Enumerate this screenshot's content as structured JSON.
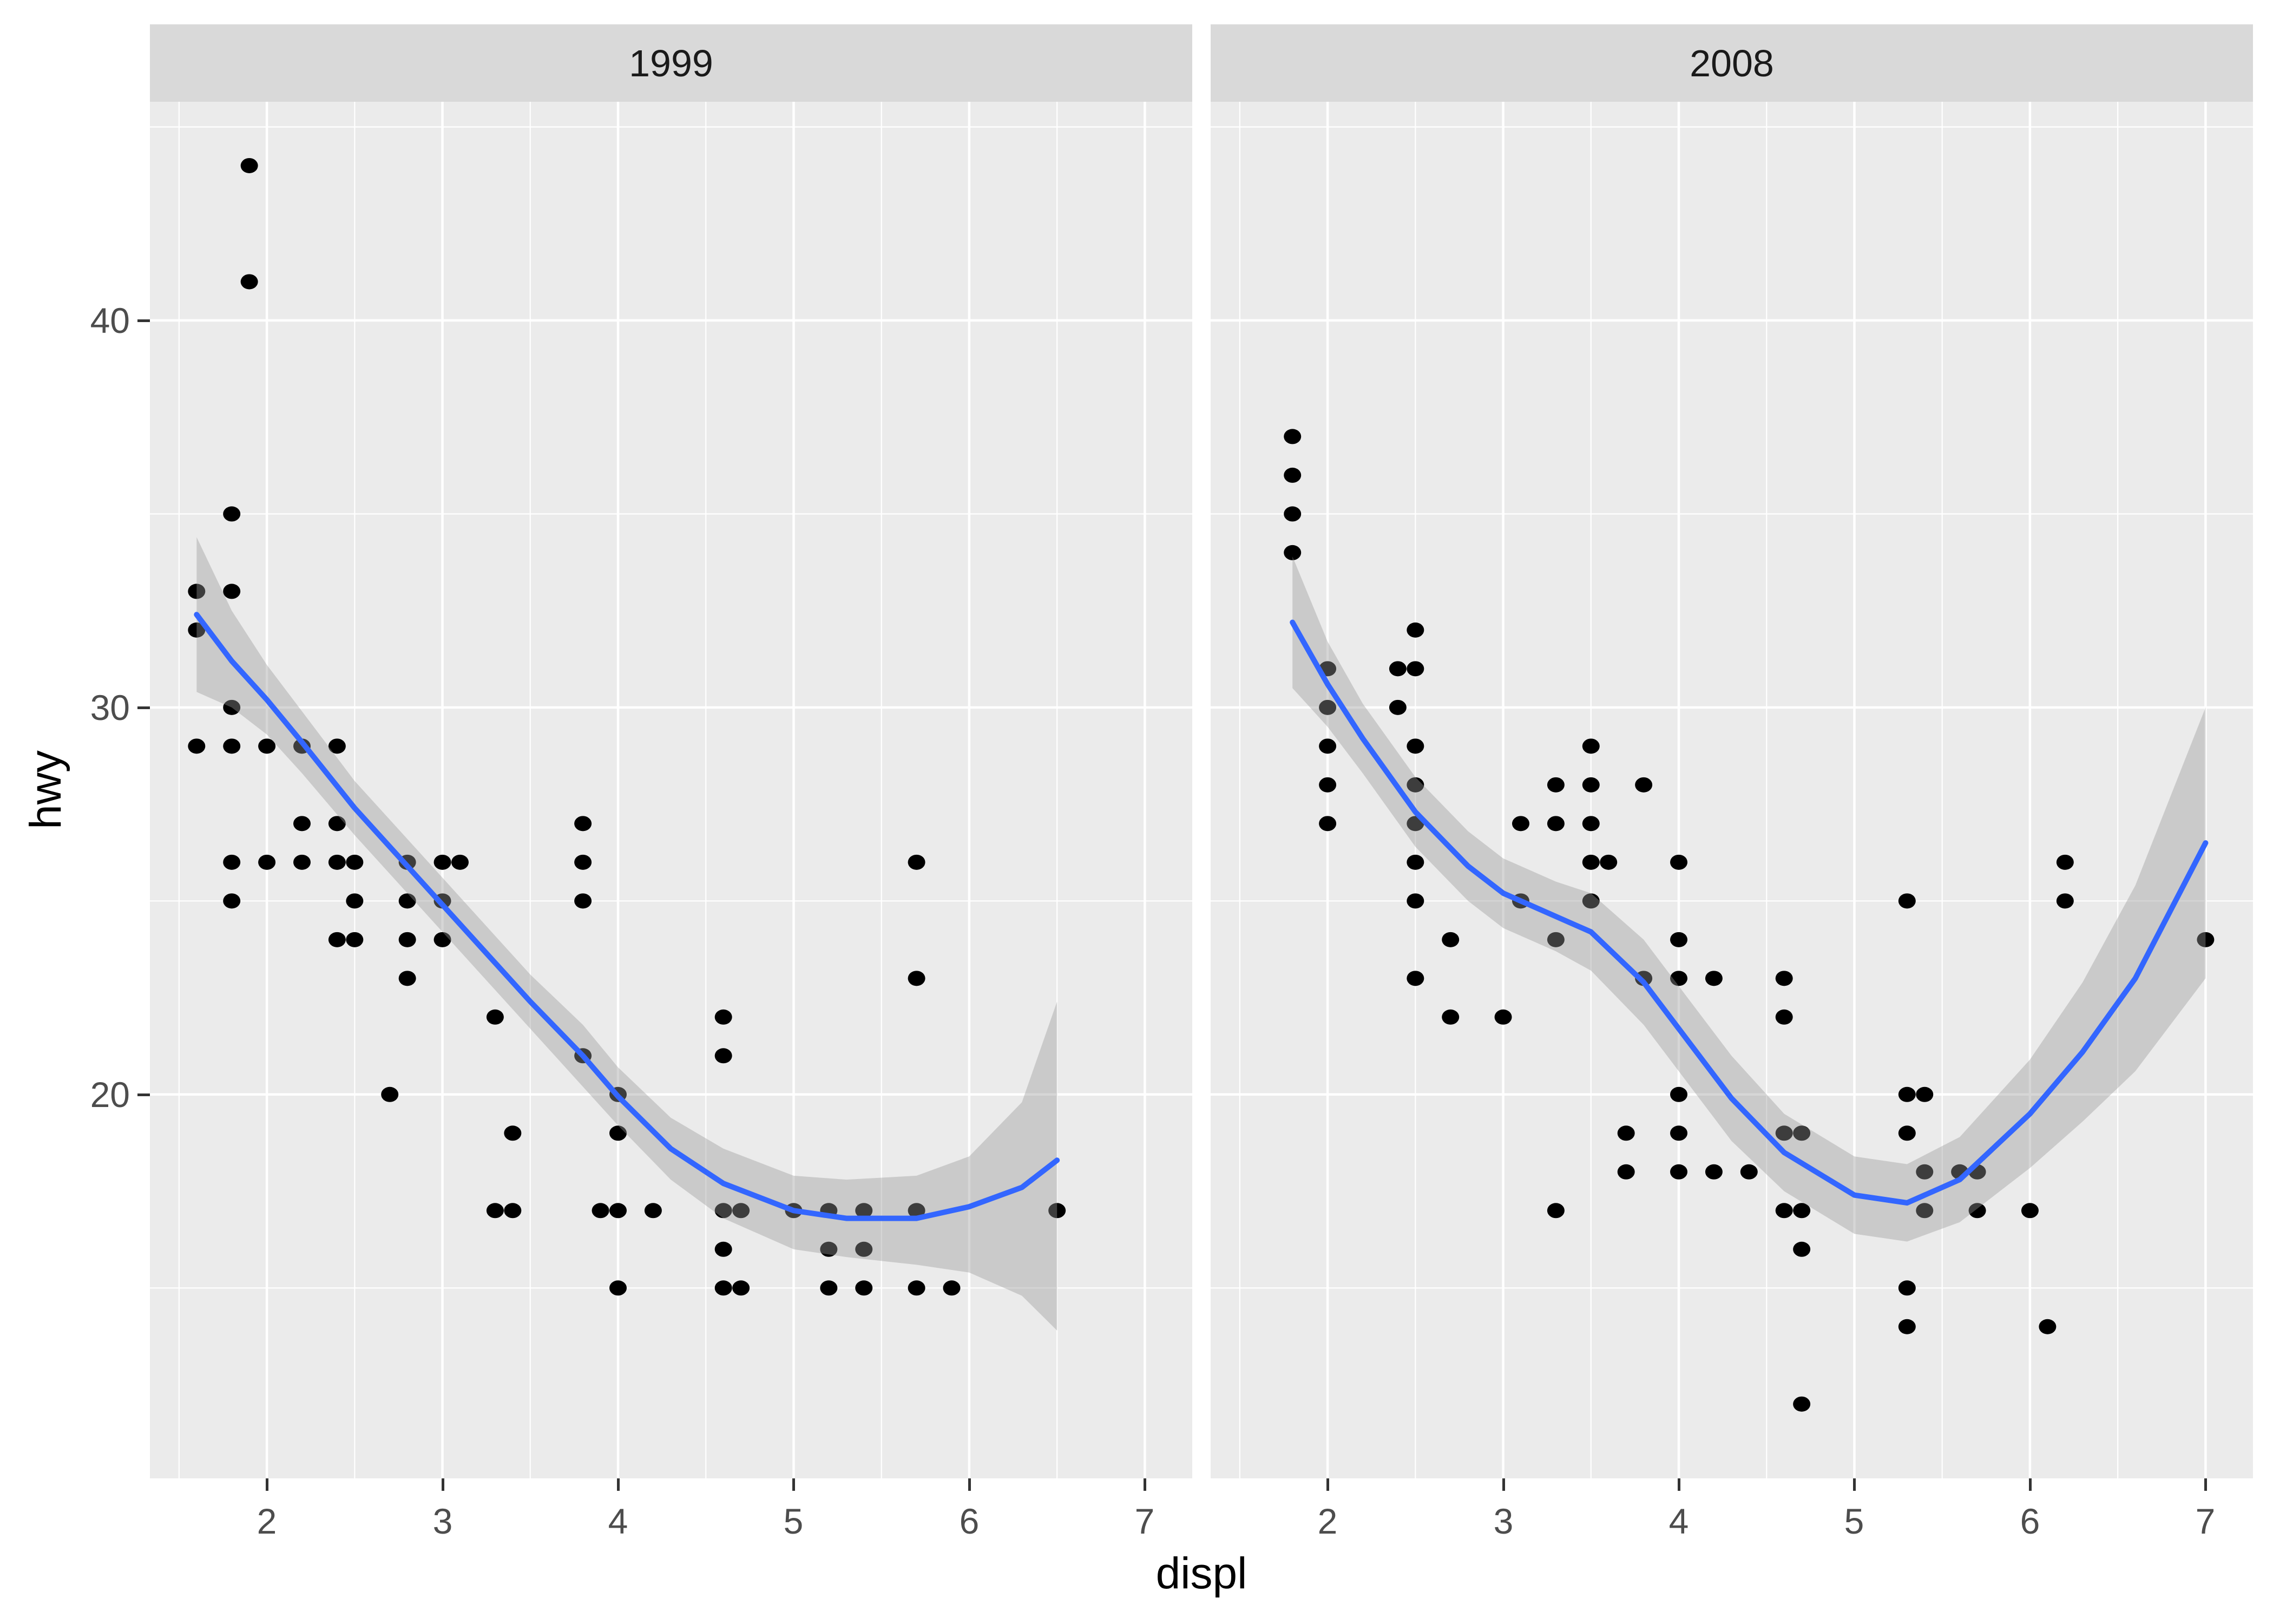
{
  "axes": {
    "x_title": "displ",
    "y_title": "hwy",
    "x_ticks": [
      2,
      3,
      4,
      5,
      6,
      7
    ],
    "x_minor": [
      1.5,
      2.5,
      3.5,
      4.5,
      5.5,
      6.5
    ],
    "y_ticks": [
      20,
      30,
      40
    ],
    "y_minor": [
      15,
      25,
      35,
      45
    ],
    "x_range": [
      1.334,
      7.27
    ],
    "y_range": [
      10.08,
      45.65
    ],
    "grid": "on",
    "legend": "none"
  },
  "colors": {
    "panel_bg": "#EBEBEB",
    "strip_bg": "#D9D9D9",
    "strip_text": "#1A1A1A",
    "grid_major": "#FFFFFF",
    "grid_minor": "#FFFFFF",
    "tick_text": "#4D4D4D",
    "axis_title_text": "#000000",
    "point": "#000000",
    "smooth_line": "#3366FF",
    "ci_band": "#999999",
    "ci_band_opacity": 0.4,
    "tick_mark": "#333333"
  },
  "chart_data": [
    {
      "type": "scatter",
      "facet": "1999",
      "xlabel": "displ",
      "ylabel": "hwy",
      "points": [
        [
          1.9,
          44
        ],
        [
          1.9,
          41
        ],
        [
          1.8,
          35
        ],
        [
          1.6,
          33
        ],
        [
          1.8,
          33
        ],
        [
          1.6,
          32
        ],
        [
          1.8,
          30
        ],
        [
          1.6,
          29
        ],
        [
          1.8,
          29
        ],
        [
          2.0,
          29
        ],
        [
          2.2,
          29
        ],
        [
          2.4,
          29
        ],
        [
          2.2,
          27
        ],
        [
          2.4,
          27
        ],
        [
          3.8,
          27
        ],
        [
          1.8,
          26
        ],
        [
          2.0,
          26
        ],
        [
          2.2,
          26
        ],
        [
          2.4,
          26
        ],
        [
          2.5,
          26
        ],
        [
          2.8,
          26
        ],
        [
          3.0,
          26
        ],
        [
          3.1,
          26
        ],
        [
          3.8,
          26
        ],
        [
          5.7,
          26
        ],
        [
          1.8,
          25
        ],
        [
          2.5,
          25
        ],
        [
          2.8,
          25
        ],
        [
          3.0,
          25
        ],
        [
          3.8,
          25
        ],
        [
          2.4,
          24
        ],
        [
          2.5,
          24
        ],
        [
          2.8,
          24
        ],
        [
          3.0,
          24
        ],
        [
          2.8,
          23
        ],
        [
          5.7,
          23
        ],
        [
          3.3,
          22
        ],
        [
          4.6,
          22
        ],
        [
          3.8,
          21
        ],
        [
          4.6,
          21
        ],
        [
          2.7,
          20
        ],
        [
          4.0,
          20
        ],
        [
          3.4,
          19
        ],
        [
          4.0,
          19
        ],
        [
          3.3,
          17
        ],
        [
          3.4,
          17
        ],
        [
          3.9,
          17
        ],
        [
          4.0,
          17
        ],
        [
          4.2,
          17
        ],
        [
          4.6,
          17
        ],
        [
          4.7,
          17
        ],
        [
          5.0,
          17
        ],
        [
          5.2,
          17
        ],
        [
          5.4,
          17
        ],
        [
          5.7,
          17
        ],
        [
          6.5,
          17
        ],
        [
          4.6,
          16
        ],
        [
          5.2,
          16
        ],
        [
          5.4,
          16
        ],
        [
          4.0,
          15
        ],
        [
          4.6,
          15
        ],
        [
          4.7,
          15
        ],
        [
          5.2,
          15
        ],
        [
          5.4,
          15
        ],
        [
          5.7,
          15
        ],
        [
          5.9,
          15
        ]
      ],
      "smooth": {
        "x": [
          1.6,
          1.8,
          2.0,
          2.2,
          2.5,
          2.8,
          3.0,
          3.3,
          3.5,
          3.8,
          4.0,
          4.3,
          4.6,
          5.0,
          5.3,
          5.7,
          6.0,
          6.3,
          6.5
        ],
        "y": [
          32.4,
          31.2,
          30.2,
          29.1,
          27.4,
          25.9,
          24.9,
          23.4,
          22.4,
          21.0,
          19.95,
          18.6,
          17.7,
          17.0,
          16.8,
          16.8,
          17.1,
          17.6,
          18.3
        ]
      },
      "band": {
        "x": [
          1.6,
          1.8,
          2.0,
          2.2,
          2.5,
          2.8,
          3.0,
          3.3,
          3.5,
          3.8,
          4.0,
          4.3,
          4.6,
          5.0,
          5.3,
          5.7,
          6.0,
          6.3,
          6.5
        ],
        "upper": [
          34.4,
          32.5,
          31.1,
          29.9,
          28.1,
          26.6,
          25.6,
          24.1,
          23.1,
          21.8,
          20.7,
          19.4,
          18.6,
          17.9,
          17.8,
          17.9,
          18.4,
          19.8,
          22.4
        ],
        "lower": [
          30.4,
          30.0,
          29.3,
          28.3,
          26.7,
          25.2,
          24.2,
          22.7,
          21.7,
          20.2,
          19.2,
          17.8,
          16.8,
          16.0,
          15.8,
          15.6,
          15.4,
          14.8,
          13.9
        ]
      }
    },
    {
      "type": "scatter",
      "facet": "2008",
      "xlabel": "displ",
      "ylabel": "hwy",
      "points": [
        [
          1.8,
          37
        ],
        [
          1.8,
          36
        ],
        [
          1.8,
          35
        ],
        [
          1.8,
          34
        ],
        [
          2.5,
          32
        ],
        [
          2.0,
          31
        ],
        [
          2.4,
          31
        ],
        [
          2.5,
          31
        ],
        [
          2.0,
          30
        ],
        [
          2.4,
          30
        ],
        [
          2.0,
          29
        ],
        [
          2.5,
          29
        ],
        [
          3.5,
          29
        ],
        [
          2.0,
          28
        ],
        [
          2.5,
          28
        ],
        [
          3.3,
          28
        ],
        [
          3.5,
          28
        ],
        [
          3.8,
          28
        ],
        [
          2.0,
          27
        ],
        [
          2.5,
          27
        ],
        [
          3.1,
          27
        ],
        [
          3.3,
          27
        ],
        [
          3.5,
          27
        ],
        [
          2.5,
          26
        ],
        [
          3.5,
          26
        ],
        [
          3.6,
          26
        ],
        [
          4.0,
          26
        ],
        [
          6.2,
          26
        ],
        [
          2.5,
          25
        ],
        [
          3.1,
          25
        ],
        [
          3.5,
          25
        ],
        [
          5.3,
          25
        ],
        [
          6.2,
          25
        ],
        [
          2.7,
          24
        ],
        [
          3.3,
          24
        ],
        [
          4.0,
          24
        ],
        [
          7.0,
          24
        ],
        [
          2.5,
          23
        ],
        [
          3.8,
          23
        ],
        [
          4.0,
          23
        ],
        [
          4.2,
          23
        ],
        [
          4.6,
          23
        ],
        [
          2.7,
          22
        ],
        [
          3.0,
          22
        ],
        [
          4.6,
          22
        ],
        [
          4.0,
          20
        ],
        [
          5.3,
          20
        ],
        [
          5.4,
          20
        ],
        [
          3.7,
          19
        ],
        [
          4.0,
          19
        ],
        [
          4.6,
          19
        ],
        [
          4.7,
          19
        ],
        [
          5.3,
          19
        ],
        [
          3.7,
          18
        ],
        [
          4.0,
          18
        ],
        [
          4.2,
          18
        ],
        [
          4.4,
          18
        ],
        [
          5.4,
          18
        ],
        [
          5.6,
          18
        ],
        [
          5.7,
          18
        ],
        [
          3.3,
          17
        ],
        [
          4.6,
          17
        ],
        [
          4.7,
          17
        ],
        [
          5.4,
          17
        ],
        [
          5.7,
          17
        ],
        [
          6.0,
          17
        ],
        [
          4.7,
          16
        ],
        [
          5.3,
          15
        ],
        [
          5.3,
          14
        ],
        [
          6.1,
          14
        ],
        [
          4.7,
          12
        ]
      ],
      "smooth": {
        "x": [
          1.8,
          2.0,
          2.2,
          2.5,
          2.8,
          3.0,
          3.3,
          3.5,
          3.8,
          4.0,
          4.3,
          4.6,
          5.0,
          5.3,
          5.6,
          6.0,
          6.3,
          6.6,
          7.0
        ],
        "y": [
          32.2,
          30.6,
          29.2,
          27.3,
          25.9,
          25.2,
          24.6,
          24.2,
          22.9,
          21.7,
          19.9,
          18.5,
          17.4,
          17.2,
          17.8,
          19.5,
          21.1,
          23.0,
          26.5
        ]
      },
      "band": {
        "x": [
          1.8,
          2.0,
          2.2,
          2.5,
          2.8,
          3.0,
          3.3,
          3.5,
          3.8,
          4.0,
          4.3,
          4.6,
          5.0,
          5.3,
          5.6,
          6.0,
          6.3,
          6.6,
          7.0
        ],
        "upper": [
          33.9,
          31.7,
          30.1,
          28.2,
          26.8,
          26.1,
          25.5,
          25.2,
          24.0,
          22.8,
          21.0,
          19.5,
          18.4,
          18.2,
          18.9,
          20.9,
          22.9,
          25.4,
          30.0
        ],
        "lower": [
          30.5,
          29.5,
          28.3,
          26.4,
          25.0,
          24.3,
          23.7,
          23.2,
          21.8,
          20.6,
          18.8,
          17.5,
          16.4,
          16.2,
          16.7,
          18.1,
          19.3,
          20.6,
          23.0
        ]
      }
    }
  ]
}
